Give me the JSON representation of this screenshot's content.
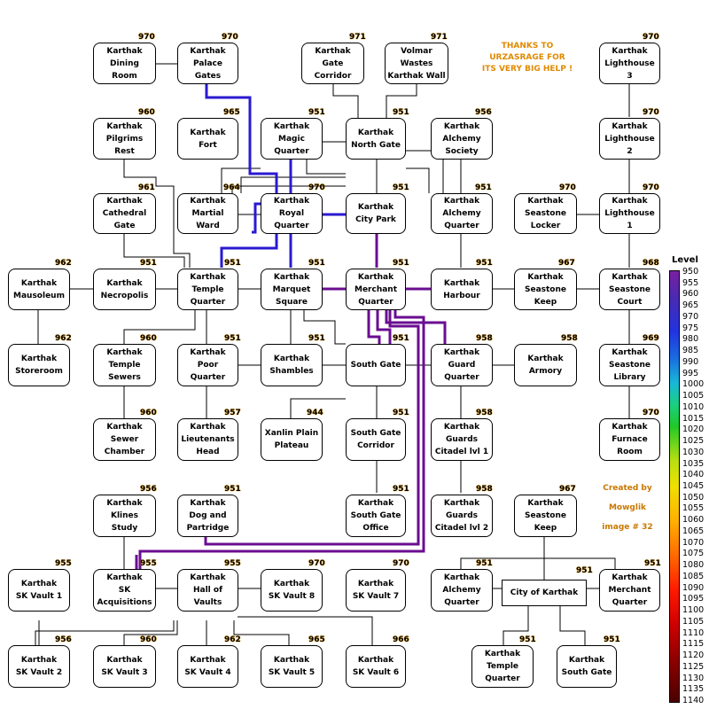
{
  "rooms": [
    {
      "name": "Karthak\nDining\nRoom",
      "level": "970"
    },
    {
      "name": "Karthak\nPalace\nGates",
      "level": "970"
    },
    {
      "name": "Karthak\nGate\nCorridor",
      "level": "971"
    },
    {
      "name": "Volmar\nWastes\nKarthak Wall",
      "level": "971"
    },
    {
      "name": "Karthak\nLighthouse\n3",
      "level": "970"
    },
    {
      "name": "Karthak\nPilgrims\nRest",
      "level": "960"
    },
    {
      "name": "Karthak\nFort",
      "level": "965"
    },
    {
      "name": "Karthak\nMagic\nQuarter",
      "level": "951"
    },
    {
      "name": "Karthak\nNorth Gate",
      "level": "951"
    },
    {
      "name": "Karthak\nAlchemy\nSociety",
      "level": "956"
    },
    {
      "name": "Karthak\nLighthouse\n2",
      "level": "970"
    },
    {
      "name": "Karthak\nCathedral\nGate",
      "level": "961"
    },
    {
      "name": "Karthak\nMartial\nWard",
      "level": "964"
    },
    {
      "name": "Karthak\nRoyal\nQuarter",
      "level": "970"
    },
    {
      "name": "Karthak\nCity Park",
      "level": "951"
    },
    {
      "name": "Karthak\nAlchemy\nQuarter",
      "level": "951"
    },
    {
      "name": "Karthak\nSeastone\nLocker",
      "level": "970"
    },
    {
      "name": "Karthak\nLighthouse\n1",
      "level": "970"
    },
    {
      "name": "Karthak\nMausoleum",
      "level": "962"
    },
    {
      "name": "Karthak\nNecropolis",
      "level": "951"
    },
    {
      "name": "Karthak\nTemple\nQuarter",
      "level": "951"
    },
    {
      "name": "Karthak\nMarquet\nSquare",
      "level": "951"
    },
    {
      "name": "Karthak\nMerchant\nQuarter",
      "level": "951"
    },
    {
      "name": "Karthak\nHarbour",
      "level": "951"
    },
    {
      "name": "Karthak\nSeastone\nKeep",
      "level": "967"
    },
    {
      "name": "Karthak\nSeastone\nCourt",
      "level": "968"
    },
    {
      "name": "Karthak\nStoreroom",
      "level": "962"
    },
    {
      "name": "Karthak\nTemple\nSewers",
      "level": "960"
    },
    {
      "name": "Karthak\nPoor\nQuarter",
      "level": "951"
    },
    {
      "name": "Karthak\nShambles",
      "level": "951"
    },
    {
      "name": "South Gate",
      "level": "951"
    },
    {
      "name": "Karthak\nGuard\nQuarter",
      "level": "958"
    },
    {
      "name": "Karthak\nArmory",
      "level": "958"
    },
    {
      "name": "Karthak\nSeastone\nLibrary",
      "level": "969"
    },
    {
      "name": "Karthak\nSewer\nChamber",
      "level": "960"
    },
    {
      "name": "Karthak\nLieutenants\nHead",
      "level": "957"
    },
    {
      "name": "Xanlin Plain\nPlateau",
      "level": "944"
    },
    {
      "name": "South Gate\nCorridor",
      "level": "951"
    },
    {
      "name": "Karthak\nGuards\nCitadel lvl 1",
      "level": "958"
    },
    {
      "name": "Karthak\nFurnace\nRoom",
      "level": "970"
    },
    {
      "name": "Karthak\nKlines\nStudy",
      "level": "956"
    },
    {
      "name": "Karthak\nDog and\nPartridge",
      "level": "951"
    },
    {
      "name": "Karthak\nSouth Gate\nOffice",
      "level": "951"
    },
    {
      "name": "Karthak\nGuards\nCitadel lvl 2",
      "level": "958"
    },
    {
      "name": "Karthak\nSeastone\nKeep",
      "level": "967"
    },
    {
      "name": "Karthak\nSK Vault 1",
      "level": "955"
    },
    {
      "name": "Karthak\nSK\nAcquisitions",
      "level": "955"
    },
    {
      "name": "Karthak\nHall of\nVaults",
      "level": "955"
    },
    {
      "name": "Karthak\nSK Vault 8",
      "level": "970"
    },
    {
      "name": "Karthak\nSK Vault 7",
      "level": "970"
    },
    {
      "name": "Karthak\nAlchemy\nQuarter",
      "level": "951"
    },
    {
      "name": "City of Karthak",
      "level": "951"
    },
    {
      "name": "Karthak\nMerchant\nQuarter",
      "level": "951"
    },
    {
      "name": "Karthak\nSK Vault 2",
      "level": "956"
    },
    {
      "name": "Karthak\nSK Vault 3",
      "level": "960"
    },
    {
      "name": "Karthak\nSK Vault 4",
      "level": "962"
    },
    {
      "name": "Karthak\nSK Vault 5",
      "level": "965"
    },
    {
      "name": "Karthak\nSK Vault 6",
      "level": "966"
    },
    {
      "name": "Karthak\nTemple\nQuarter",
      "level": "951"
    },
    {
      "name": "Karthak\nSouth Gate",
      "level": "951"
    }
  ],
  "thanks_note": "THANKS TO\nURZASRAGE FOR\nITS VERY BIG HELP !",
  "credits": "Created by\nMowglik\nimage # 32",
  "legend": {
    "title": "Level",
    "ticks": [
      "950",
      "955",
      "960",
      "965",
      "970",
      "975",
      "980",
      "985",
      "990",
      "995",
      "1000",
      "1005",
      "1010",
      "1015",
      "1020",
      "1025",
      "1030",
      "1035",
      "1040",
      "1045",
      "1050",
      "1055",
      "1060",
      "1065",
      "1070",
      "1075",
      "1080",
      "1085",
      "1090",
      "1095",
      "1100",
      "1105",
      "1110",
      "1115",
      "1120",
      "1125",
      "1130",
      "1135",
      "1140"
    ]
  },
  "colors": {
    "blue_route": "#2a1ad0",
    "purple_route": "#6a0d91",
    "level_text_glow": "#f2a000"
  }
}
